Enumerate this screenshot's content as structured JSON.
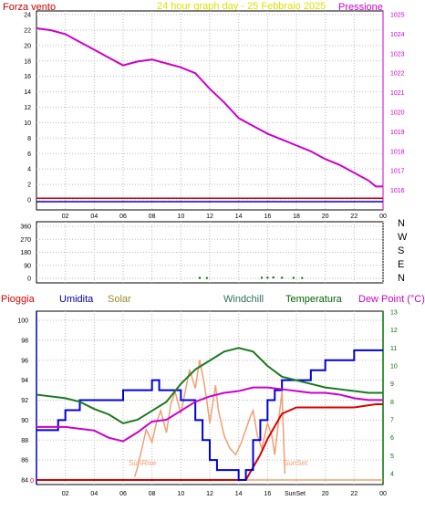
{
  "colors": {
    "wind": "#cc0000",
    "pressure": "#cc00cc",
    "title": "#e0e000",
    "rain": "#dd0000",
    "humidity": "#0000aa",
    "solar": "#9b8a24",
    "windchill": "#2c6e5e",
    "temperature": "#006600",
    "dewpoint": "#cc00cc",
    "axis_blue": "#0000cc",
    "axis_green": "#007700",
    "grid": "#bbbbbb",
    "solarline": "#f0a070"
  },
  "header": {
    "left": "Forza vento ",
    "title": "24 hour graph day - 25 Febbraio 2025",
    "right": "Pressione"
  },
  "legend": {
    "rain": "Pioggia",
    "humidity": "Umidita",
    "solar": "Solar",
    "windchill": "Windchill",
    "temperature": "Temperatura",
    "dewpoint": "Dew Point (°C)"
  },
  "markers": {
    "sunrise": "SunRise",
    "sunset": "SunSet",
    "sunset_axis": "SunSet"
  },
  "direction_labels": [
    "N",
    "W",
    "S",
    "E",
    "N"
  ],
  "chart_data": [
    {
      "type": "line",
      "title": "24 hour graph day - 25 Febbraio 2025",
      "x_ticks": [
        "02",
        "04",
        "06",
        "08",
        "10",
        "12",
        "14",
        "16",
        "18",
        "20",
        "22",
        "00"
      ],
      "left_axis": {
        "label": "Forza vento ",
        "ylim": [
          0,
          24
        ],
        "ticks": [
          0,
          2,
          4,
          6,
          8,
          10,
          12,
          14,
          16,
          18,
          20,
          22,
          24
        ]
      },
      "right_axis": {
        "label": "Pressione",
        "ylim": [
          1015,
          1025
        ],
        "ticks": [
          1016,
          1017,
          1018,
          1019,
          1020,
          1021,
          1022,
          1023,
          1024,
          1025
        ]
      },
      "series": [
        {
          "name": "Pressione",
          "axis": "right",
          "x": [
            0,
            1,
            2,
            3,
            4,
            5,
            6,
            7,
            8,
            9,
            10,
            11,
            12,
            13,
            14,
            15,
            16,
            17,
            18,
            19,
            20,
            21,
            22,
            23,
            23.5,
            24
          ],
          "y": [
            1024.3,
            1024.2,
            1024.0,
            1023.6,
            1023.2,
            1022.8,
            1022.4,
            1022.6,
            1022.7,
            1022.5,
            1022.3,
            1022.0,
            1021.2,
            1020.5,
            1019.7,
            1019.3,
            1018.9,
            1018.6,
            1018.3,
            1018.0,
            1017.6,
            1017.3,
            1016.9,
            1016.5,
            1016.2,
            1016.2
          ]
        },
        {
          "name": "Forza vento ",
          "axis": "left",
          "x": [
            0,
            24
          ],
          "y": [
            0.2,
            0.2
          ]
        }
      ],
      "grid": true
    },
    {
      "type": "scatter",
      "x_ticks": [
        "02",
        "04",
        "06",
        "08",
        "10",
        "12",
        "14",
        "16",
        "18",
        "20",
        "22",
        "00"
      ],
      "ylim": [
        0,
        360
      ],
      "y_ticks": [
        0,
        90,
        180,
        270,
        360
      ],
      "series": [
        {
          "name": "wind_direction",
          "x": [
            11.3,
            11.8,
            15.6,
            16.0,
            16.4,
            17.0,
            17.8,
            18.4
          ],
          "y": [
            3,
            2,
            4,
            5,
            6,
            4,
            3,
            2
          ]
        }
      ],
      "grid": true
    },
    {
      "type": "line",
      "x_ticks": [
        "02",
        "04",
        "06",
        "08",
        "10",
        "12",
        "14",
        "16",
        "18",
        "20",
        "22",
        "00"
      ],
      "left_axis": {
        "label": "Umidita",
        "ylim": [
          84,
          100
        ],
        "ticks": [
          84,
          86,
          88,
          90,
          92,
          94,
          96,
          98,
          100
        ]
      },
      "right_axis": {
        "label": "Temperatura",
        "ylim": [
          4,
          13
        ],
        "ticks": [
          4,
          5,
          6,
          7,
          8,
          9,
          10,
          11,
          12,
          13
        ]
      },
      "rain_axis_ticks": [
        "0"
      ],
      "series": [
        {
          "name": "Umidita",
          "axis": "left",
          "x": [
            0,
            1,
            1.5,
            2,
            3,
            4,
            5,
            6,
            6.5,
            7,
            8,
            8.5,
            9,
            9.5,
            10,
            10.5,
            11,
            11.5,
            12,
            12.5,
            13,
            13.5,
            14,
            14.5,
            15,
            15.5,
            16,
            16.5,
            17,
            18,
            19,
            20,
            21,
            22,
            22.5,
            23,
            24
          ],
          "y": [
            89,
            89,
            90,
            91,
            92,
            92,
            92,
            93,
            93,
            93,
            94,
            93,
            93,
            93,
            92,
            92,
            90,
            88,
            86,
            85,
            85,
            85,
            84,
            85,
            88,
            90,
            92,
            93,
            94,
            94,
            95,
            96,
            96,
            97,
            97,
            97,
            97
          ]
        },
        {
          "name": "Temperatura",
          "axis": "right",
          "x": [
            0,
            1,
            2,
            3,
            4,
            5,
            6,
            7,
            8,
            9,
            10,
            11,
            12,
            13,
            14,
            15,
            16,
            17,
            18,
            19,
            20,
            21,
            22,
            23,
            24
          ],
          "y": [
            8.4,
            8.3,
            8.2,
            8.0,
            7.6,
            7.3,
            6.8,
            7.0,
            7.5,
            8.0,
            9.0,
            9.8,
            10.3,
            10.8,
            11.0,
            10.8,
            10.0,
            9.4,
            9.2,
            9.0,
            8.8,
            8.7,
            8.6,
            8.5,
            8.5
          ]
        },
        {
          "name": "Dew Point (°C)",
          "axis": "right",
          "x": [
            0,
            1,
            2,
            3,
            4,
            5,
            6,
            7,
            8,
            9,
            10,
            11,
            12,
            13,
            14,
            15,
            16,
            17,
            18,
            19,
            20,
            21,
            22,
            23,
            24
          ],
          "y": [
            6.6,
            6.6,
            6.6,
            6.5,
            6.4,
            6.0,
            5.8,
            6.3,
            6.9,
            7.0,
            7.5,
            8.0,
            8.3,
            8.5,
            8.6,
            8.8,
            8.8,
            8.7,
            8.6,
            8.5,
            8.5,
            8.4,
            8.2,
            8.1,
            8.1
          ]
        },
        {
          "name": "Pioggia",
          "axis": "rain",
          "x": [
            0,
            13.8,
            14.5,
            15,
            15.5,
            16,
            16.5,
            17,
            18,
            20,
            22,
            23.5,
            24
          ],
          "y": [
            0,
            0,
            0,
            4,
            8,
            13,
            17,
            21,
            23,
            23,
            23,
            24,
            24
          ]
        },
        {
          "name": "Solar",
          "axis": "rain",
          "x": [
            6.8,
            7,
            7.3,
            7.6,
            8,
            8.3,
            8.6,
            9,
            9.3,
            9.6,
            10,
            10.3,
            10.6,
            11,
            11.3,
            11.6,
            11.8,
            12,
            12.2,
            12.4,
            12.6,
            13,
            13.4,
            13.8,
            14.2,
            14.5,
            14.8,
            15,
            15.3,
            15.6,
            16,
            16.3,
            16.5,
            16.8,
            17,
            17.2
          ],
          "y": [
            1,
            4,
            10,
            16,
            12,
            18,
            22,
            15,
            24,
            28,
            21,
            28,
            35,
            29,
            38,
            31,
            25,
            18,
            24,
            30,
            22,
            14,
            10,
            8,
            12,
            16,
            20,
            22,
            14,
            10,
            18,
            14,
            8,
            20,
            28,
            2
          ]
        }
      ],
      "grid": true
    }
  ]
}
